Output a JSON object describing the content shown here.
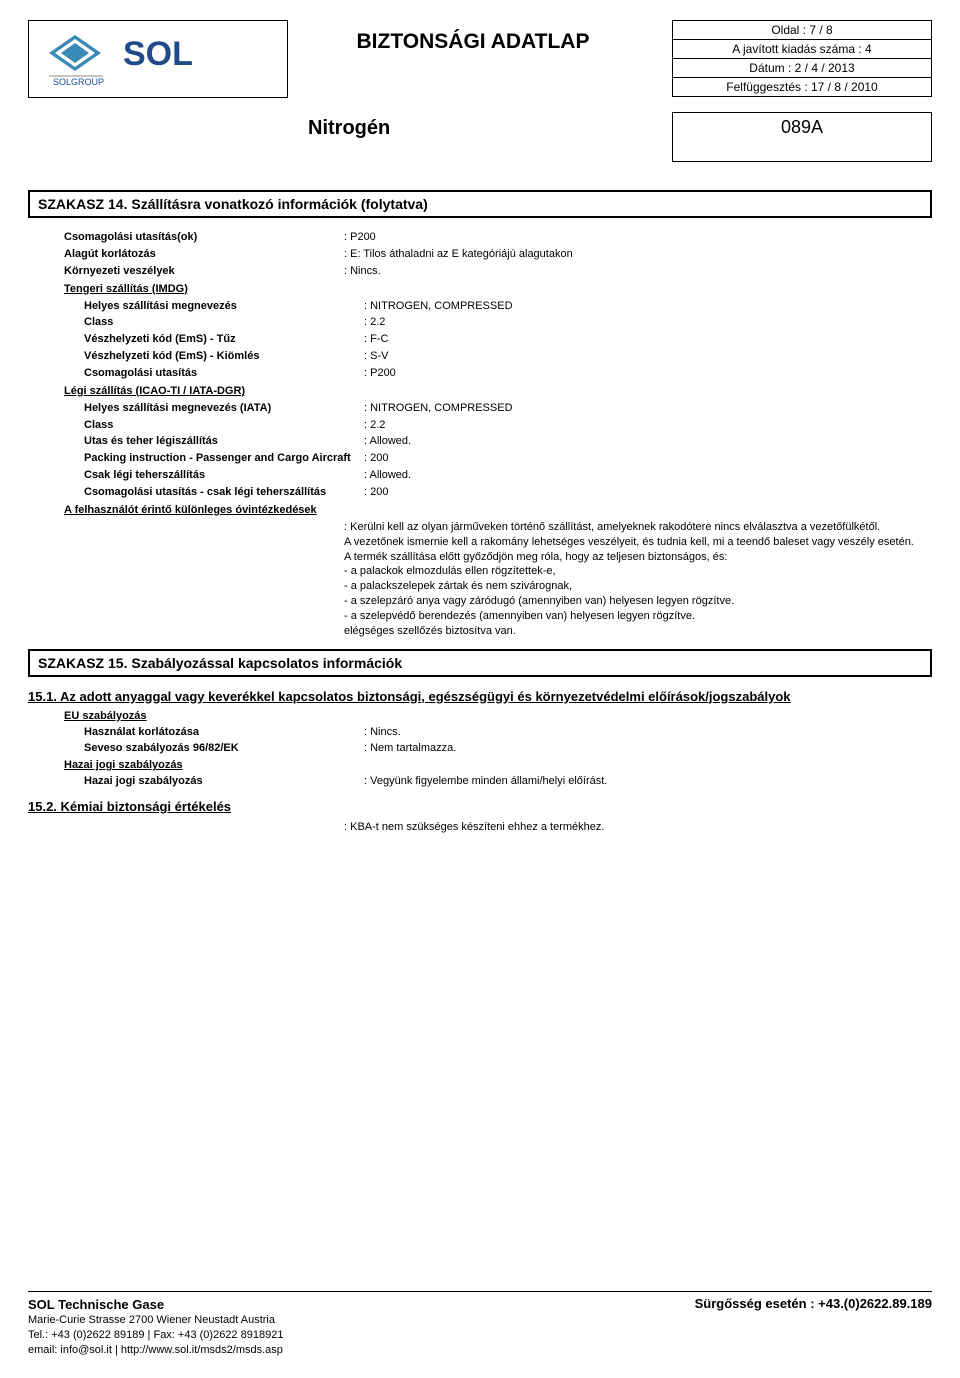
{
  "header": {
    "title": "BIZTONSÁGI ADATLAP",
    "page": "Oldal : 7 / 8",
    "revision": "A javított kiadás száma : 4",
    "date": "Dátum : 2 / 4 / 2013",
    "supersedes": "Felfüggesztés : 17 / 8 / 2010",
    "substance": "Nitrogén",
    "code": "089A"
  },
  "section14": {
    "title": "SZAKASZ 14.  Szállításra vonatkozó információk  (folytatva)",
    "rows": [
      {
        "label": "Csomagolási utasítás(ok)",
        "value": ": P200"
      },
      {
        "label": "Alagút korlátozás",
        "value": ": E: Tilos áthaladni az E kategóriájú alagutakon"
      },
      {
        "label": "Környezeti veszélyek",
        "value": ": Nincs."
      }
    ],
    "imdg_title": "Tengeri szállítás (IMDG)",
    "imdg_rows": [
      {
        "label": "Helyes szállítási megnevezés",
        "value": ": NITROGEN, COMPRESSED"
      },
      {
        "label": "Class",
        "value": ": 2.2"
      },
      {
        "label": "Vészhelyzeti kód (EmS) - Tűz",
        "value": ": F-C"
      },
      {
        "label": "Vészhelyzeti kód (EmS) - Kiömlés",
        "value": ": S-V"
      },
      {
        "label": "Csomagolási utasítás",
        "value": ": P200"
      }
    ],
    "icao_title": "Légi szállítás (ICAO-TI / IATA-DGR)",
    "icao_rows": [
      {
        "label": "Helyes szállítási megnevezés (IATA)",
        "value": ": NITROGEN, COMPRESSED"
      },
      {
        "label": "Class",
        "value": ": 2.2"
      },
      {
        "label": "Utas és teher légiszállítás",
        "value": ": Allowed."
      },
      {
        "label": "Packing instruction - Passenger and Cargo Aircraft",
        "value": ": 200"
      },
      {
        "label": "Csak légi teherszállítás",
        "value": ": Allowed."
      },
      {
        "label": "Csomagolási utasítás - csak légi teherszállítás",
        "value": ": 200"
      }
    ],
    "precautions_title": "A felhasználót érintő különleges óvintézkedések",
    "precautions_lines": [
      ": Kerülni kell az olyan járműveken történő szállítást, amelyeknek rakodótere nincs elválasztva a vezetőfülkétől.",
      "A vezetőnek ismernie kell a rakomány lehetséges veszélyeit, és tudnia kell, mi a teendő baleset vagy veszély esetén.",
      "A termék szállítása előtt győződjön meg róla, hogy az teljesen biztonságos, és:",
      " - a palackok elmozdulás ellen rögzítettek-e,",
      " - a palackszelepek zártak és nem szivárognak,",
      " - a szelepzáró anya vagy záródugó (amennyiben van) helyesen legyen rögzítve.",
      " - a szelepvédő berendezés (amennyiben van) helyesen legyen rögzítve.",
      "elégséges szellőzés biztosítva van."
    ]
  },
  "section15": {
    "title": "SZAKASZ 15.  Szabályozással kapcsolatos információk",
    "sub1_title": "15.1.  Az adott anyaggal vagy keverékkel kapcsolatos biztonsági, egészségügyi és környezetvédelmi előírások/jogszabályok",
    "eu_label": "EU szabályozás",
    "eu_rows": [
      {
        "label": "Használat korlátozása",
        "value": ": Nincs."
      },
      {
        "label": "Seveso szabályozás 96/82/EK",
        "value": ": Nem tartalmazza."
      }
    ],
    "natl_label": "Hazai jogi szabályozás",
    "natl_rows": [
      {
        "label": "Hazai jogi szabályozás",
        "value": ": Vegyünk figyelembe minden állami/helyi előírást."
      }
    ],
    "sub2_title": "15.2.  Kémiai biztonsági értékelés",
    "sub2_value": ": KBA-t nem szükséges készíteni ehhez a termékhez."
  },
  "footer": {
    "company": "SOL Technische Gase",
    "address": "Marie-Curie Strasse  2700  Wiener Neustadt  Austria",
    "tel": "Tel.: +43 (0)2622 89189 | Fax: +43 (0)2622 8918921",
    "email": "email: info@sol.it | http://www.sol.it/msds2/msds.asp",
    "emergency": "Sürgősség esetén : +43.(0)2622.89.189"
  },
  "logo": {
    "brand": "SOL",
    "group": "SOLGROUP",
    "diamond_color": "#3a8ab8",
    "brand_color": "#214a8a"
  }
}
